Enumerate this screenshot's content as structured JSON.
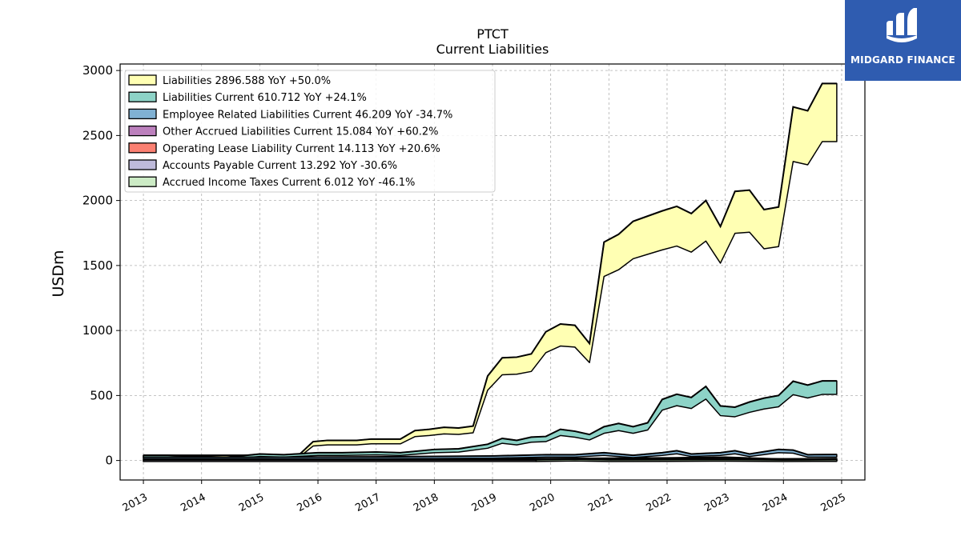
{
  "logo": {
    "text": "MIDGARD FINANCE",
    "color": "#2f5cb0"
  },
  "chart_data": {
    "type": "area",
    "title": "PTCT",
    "subtitle": "Current  Liabilities",
    "ylabel": "USDm",
    "xlabel": "",
    "xlim": [
      2012.6,
      2025.4
    ],
    "ylim": [
      -150,
      3050
    ],
    "yticks": [
      0,
      500,
      1000,
      1500,
      2000,
      2500,
      3000
    ],
    "xticks": [
      "2013",
      "2014",
      "2015",
      "2016",
      "2017",
      "2018",
      "2019",
      "2020",
      "2021",
      "2022",
      "2023",
      "2024",
      "2025"
    ],
    "grid": true,
    "legend_position": "top-left",
    "series": [
      {
        "name": "Liabilities",
        "legend": "Liabilities  2896.588 YoY +50.0%",
        "color": "#ffffb3",
        "start": "2013-01",
        "points": [
          [
            "2015-09",
            40
          ],
          [
            "2015-12",
            145
          ],
          [
            "2016-03",
            155
          ],
          [
            "2016-06",
            155
          ],
          [
            "2016-09",
            155
          ],
          [
            "2016-12",
            165
          ],
          [
            "2017-03",
            165
          ],
          [
            "2017-06",
            165
          ],
          [
            "2017-09",
            230
          ],
          [
            "2017-12",
            240
          ],
          [
            "2018-03",
            255
          ],
          [
            "2018-06",
            250
          ],
          [
            "2018-09",
            265
          ],
          [
            "2018-12",
            650
          ],
          [
            "2019-03",
            790
          ],
          [
            "2019-06",
            795
          ],
          [
            "2019-09",
            820
          ],
          [
            "2019-12",
            990
          ],
          [
            "2020-03",
            1050
          ],
          [
            "2020-06",
            1040
          ],
          [
            "2020-09",
            900
          ],
          [
            "2020-12",
            1680
          ],
          [
            "2021-03",
            1740
          ],
          [
            "2021-06",
            1840
          ],
          [
            "2021-09",
            1880
          ],
          [
            "2021-12",
            1920
          ],
          [
            "2022-03",
            1955
          ],
          [
            "2022-06",
            1900
          ],
          [
            "2022-09",
            2000
          ],
          [
            "2022-12",
            1800
          ],
          [
            "2023-03",
            2070
          ],
          [
            "2023-06",
            2080
          ],
          [
            "2023-09",
            1930
          ],
          [
            "2023-12",
            1950
          ],
          [
            "2024-03",
            2720
          ],
          [
            "2024-06",
            2690
          ],
          [
            "2024-09",
            2900
          ],
          [
            "2024-12",
            2900
          ]
        ]
      },
      {
        "name": "Liabilities Current",
        "legend": "Liabilities Current  610.712 YoY +24.1%",
        "color": "#8dd3c7",
        "start": "2013-01",
        "points": [
          [
            "2013-01",
            40
          ],
          [
            "2013-06",
            40
          ],
          [
            "2014-01",
            30
          ],
          [
            "2014-06",
            25
          ],
          [
            "2015-01",
            50
          ],
          [
            "2015-06",
            45
          ],
          [
            "2016-01",
            60
          ],
          [
            "2016-06",
            60
          ],
          [
            "2017-01",
            65
          ],
          [
            "2017-06",
            60
          ],
          [
            "2018-01",
            85
          ],
          [
            "2018-06",
            90
          ],
          [
            "2018-12",
            125
          ],
          [
            "2019-03",
            170
          ],
          [
            "2019-06",
            155
          ],
          [
            "2019-09",
            180
          ],
          [
            "2019-12",
            185
          ],
          [
            "2020-03",
            240
          ],
          [
            "2020-06",
            225
          ],
          [
            "2020-09",
            200
          ],
          [
            "2020-12",
            260
          ],
          [
            "2021-03",
            285
          ],
          [
            "2021-06",
            260
          ],
          [
            "2021-09",
            290
          ],
          [
            "2021-12",
            470
          ],
          [
            "2022-03",
            510
          ],
          [
            "2022-06",
            485
          ],
          [
            "2022-09",
            570
          ],
          [
            "2022-12",
            420
          ],
          [
            "2023-03",
            410
          ],
          [
            "2023-06",
            450
          ],
          [
            "2023-09",
            480
          ],
          [
            "2023-12",
            500
          ],
          [
            "2024-03",
            610
          ],
          [
            "2024-06",
            580
          ],
          [
            "2024-09",
            612
          ],
          [
            "2024-12",
            612
          ]
        ]
      },
      {
        "name": "Employee Related Liabilities Current",
        "legend": "Employee Related Liabilities Current  46.209 YoY -34.7%",
        "color": "#80b1d3",
        "start": "2013-01",
        "points": [
          [
            "2013-01",
            25
          ],
          [
            "2015-01",
            25
          ],
          [
            "2017-01",
            28
          ],
          [
            "2019-01",
            35
          ],
          [
            "2019-12",
            45
          ],
          [
            "2020-06",
            45
          ],
          [
            "2020-12",
            60
          ],
          [
            "2021-06",
            40
          ],
          [
            "2021-12",
            60
          ],
          [
            "2022-03",
            75
          ],
          [
            "2022-06",
            50
          ],
          [
            "2022-12",
            60
          ],
          [
            "2023-03",
            75
          ],
          [
            "2023-06",
            50
          ],
          [
            "2023-12",
            85
          ],
          [
            "2024-03",
            80
          ],
          [
            "2024-06",
            45
          ],
          [
            "2024-12",
            46
          ]
        ]
      },
      {
        "name": "Other Accrued Liabilities Current",
        "legend": "Other Accrued Liabilities Current  15.084 YoY +60.2%",
        "color": "#bc80bd",
        "start": "2013-01",
        "points": [
          [
            "2013-01",
            10
          ],
          [
            "2016-01",
            10
          ],
          [
            "2019-01",
            15
          ],
          [
            "2020-01",
            15
          ],
          [
            "2022-01",
            20
          ],
          [
            "2023-01",
            25
          ],
          [
            "2024-01",
            10
          ],
          [
            "2024-12",
            15
          ]
        ]
      },
      {
        "name": "Operating Lease Liability Current",
        "legend": "Operating Lease Liability Current  14.113 YoY +20.6%",
        "color": "#fb8072",
        "start": "2019-03",
        "points": [
          [
            "2019-03",
            10
          ],
          [
            "2020-01",
            10
          ],
          [
            "2021-01",
            12
          ],
          [
            "2022-01",
            12
          ],
          [
            "2023-01",
            12
          ],
          [
            "2024-01",
            12
          ],
          [
            "2024-12",
            14
          ]
        ]
      },
      {
        "name": "Accounts Payable Current",
        "legend": "Accounts Payable Current  13.292 YoY -30.6%",
        "color": "#bebada",
        "start": "2013-01",
        "points": [
          [
            "2013-01",
            5
          ],
          [
            "2015-01",
            5
          ],
          [
            "2016-01",
            5
          ],
          [
            "2017-01",
            5
          ],
          [
            "2018-01",
            5
          ],
          [
            "2019-01",
            5
          ],
          [
            "2019-10",
            5
          ]
        ]
      },
      {
        "name": "Accrued Income Taxes Current",
        "legend": "Accrued Income Taxes Current  6.012 YoY -46.1%",
        "color": "#ccebc5",
        "start": "2019-10",
        "points": [
          [
            "2019-10",
            5
          ],
          [
            "2020-06",
            10
          ],
          [
            "2021-01",
            5
          ],
          [
            "2022-01",
            6
          ],
          [
            "2023-01",
            8
          ],
          [
            "2024-01",
            5
          ],
          [
            "2024-12",
            6
          ]
        ]
      }
    ]
  }
}
